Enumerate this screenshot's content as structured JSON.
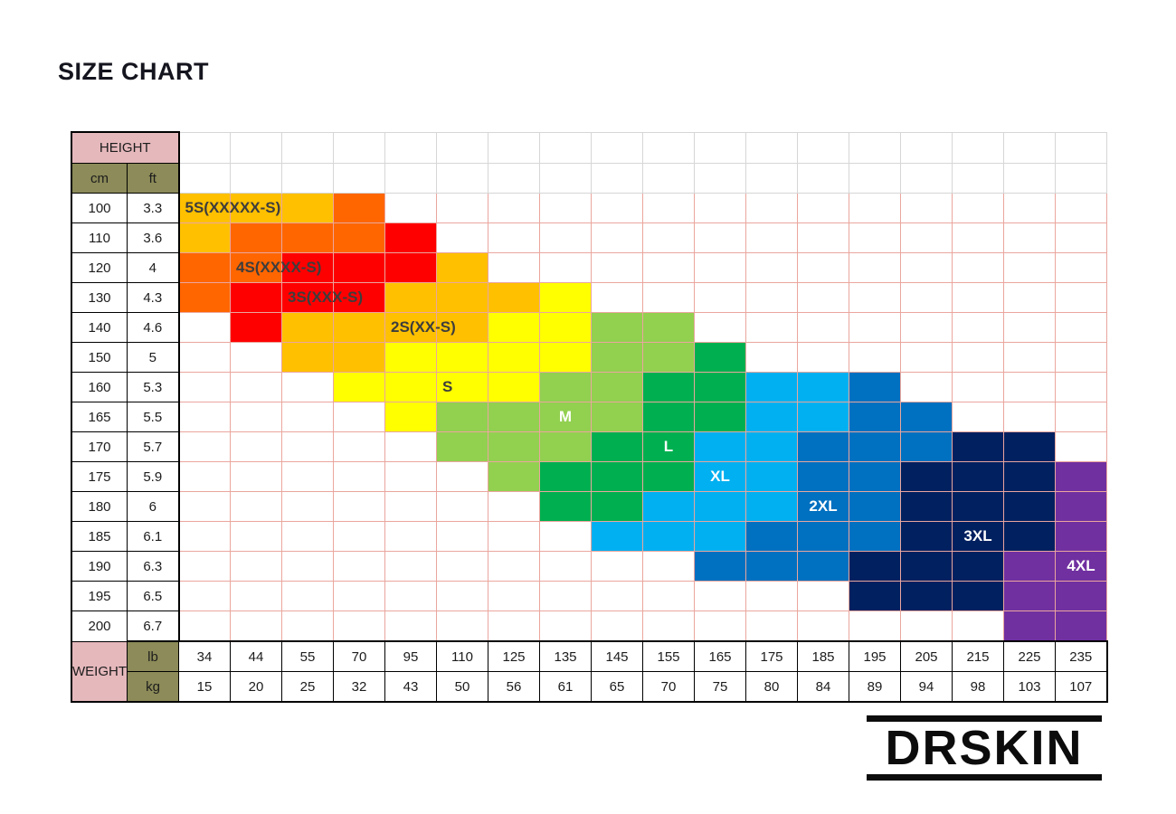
{
  "title": "SIZE CHART",
  "logo": "DRSKIN",
  "chart_data": {
    "type": "heatmap",
    "description": "Apparel size chart: colored zones over a height (rows) x weight (columns) grid",
    "height_header": {
      "label": "HEIGHT",
      "units": [
        "cm",
        "ft"
      ]
    },
    "weight_header": {
      "label": "WEIGHT",
      "units": [
        "lb",
        "kg"
      ]
    },
    "heights_cm": [
      "100",
      "110",
      "120",
      "130",
      "140",
      "150",
      "160",
      "165",
      "170",
      "175",
      "180",
      "185",
      "190",
      "195",
      "200"
    ],
    "heights_ft": [
      "3.3",
      "3.6",
      "4",
      "4.3",
      "4.6",
      "5",
      "5.3",
      "5.5",
      "5.7",
      "5.9",
      "6",
      "6.1",
      "6.3",
      "6.5",
      "6.7"
    ],
    "weights_lb": [
      "34",
      "44",
      "55",
      "70",
      "95",
      "110",
      "125",
      "135",
      "145",
      "155",
      "165",
      "175",
      "185",
      "195",
      "205",
      "215",
      "225",
      "235"
    ],
    "weights_kg": [
      "15",
      "20",
      "25",
      "32",
      "43",
      "50",
      "56",
      "61",
      "65",
      "70",
      "75",
      "80",
      "84",
      "89",
      "94",
      "98",
      "103",
      "107"
    ],
    "grid": [
      "AAAO..............",
      "AOOOR.............",
      "OORRRA............",
      "ORRRAAAY..........",
      ".RAAAAYYgg........",
      "..AAYYYYggG.......",
      "...YYYYggGGssB....",
      "....YggggGGssBB...",
      ".....gggGGssBBBNN.",
      "......gGGGssBBNNNP",
      ".......GGsssBBNNNP",
      "........sssBBBNNNP",
      "..........BBBNNNPP",
      ".............NNNPP",
      "................PP"
    ],
    "palette": {
      "A": "#FFC000",
      "O": "#FF6600",
      "R": "#FF0000",
      "Y": "#FFFF00",
      "g": "#92D050",
      "G": "#00B050",
      "s": "#00B0F0",
      "B": "#0070C0",
      "N": "#002060",
      "P": "#7030A0"
    },
    "labels": [
      {
        "text": "5S(XXXXX-S)",
        "row": 0,
        "col": 1,
        "style": "dark"
      },
      {
        "text": "4S(XXXX-S)",
        "row": 2,
        "col": 2,
        "style": "dark"
      },
      {
        "text": "3S(XXX-S)",
        "row": 3,
        "col": 3,
        "style": "dark"
      },
      {
        "text": "2S(XX-S)",
        "row": 4,
        "col": 5,
        "style": "dark"
      },
      {
        "text": "S",
        "row": 6,
        "col": 6,
        "style": "dark"
      },
      {
        "text": "M",
        "row": 7,
        "col": 8,
        "style": "light"
      },
      {
        "text": "L",
        "row": 8,
        "col": 10,
        "style": "light"
      },
      {
        "text": "XL",
        "row": 9,
        "col": 11,
        "style": "light"
      },
      {
        "text": "2XL",
        "row": 10,
        "col": 13,
        "style": "light"
      },
      {
        "text": "3XL",
        "row": 11,
        "col": 16,
        "style": "light"
      },
      {
        "text": "4XL",
        "row": 12,
        "col": 18,
        "style": "light"
      }
    ],
    "colors": {
      "header_pink": "#E5B8BC",
      "header_olive": "#8C8B59",
      "body_gridline": "#EAA69E",
      "top_gridline": "#D6D6D6",
      "border_black": "#000000"
    },
    "layout": {
      "grid_on": true,
      "columns": 18,
      "rows": 15
    }
  }
}
